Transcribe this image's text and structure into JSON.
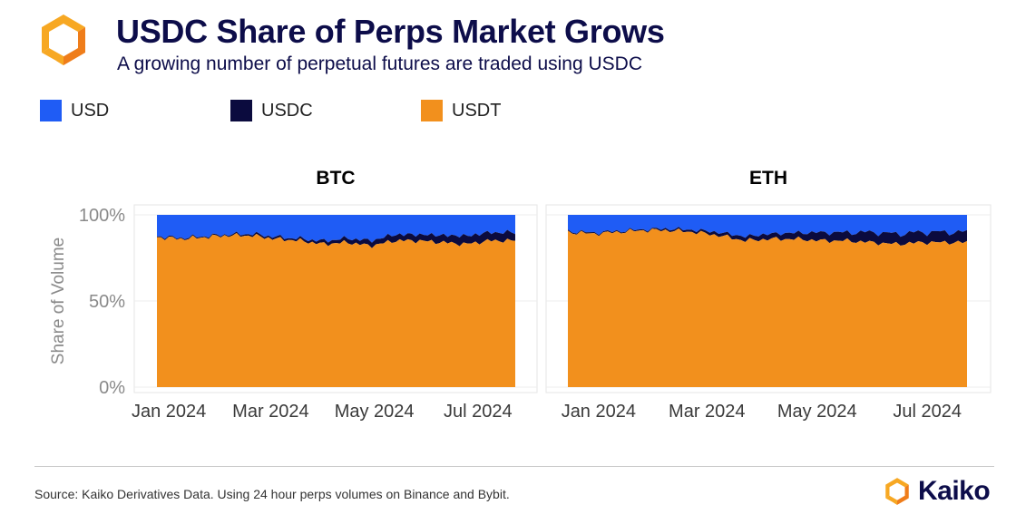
{
  "header": {
    "title": "USDC Share of Perps Market Grows",
    "subtitle": "A growing number of perpetual futures are traded using USDC"
  },
  "footer": {
    "source": "Source: Kaiko Derivatives Data. Using 24 hour perps volumes on Binance and Bybit.",
    "brand": "Kaiko"
  },
  "colors": {
    "usd": "#1f5cf5",
    "usdc": "#0b0b3e",
    "usdt": "#f2901d",
    "logo_orange": "#f7a823",
    "logo_dark": "#ef7d1a"
  },
  "chart_data": [
    {
      "type": "area",
      "stacked": true,
      "title": "BTC",
      "ylabel": "Share of Volume",
      "ylim": [
        0,
        100
      ],
      "yticks": [
        0,
        50,
        100
      ],
      "ytick_labels": [
        "0%",
        "50%",
        "100%"
      ],
      "x_range": [
        "2023-12-25",
        "2024-07-23"
      ],
      "xtick_labels": [
        "Jan 2024",
        "Mar 2024",
        "May 2024",
        "Jul 2024"
      ],
      "xticks": [
        "2024-01-01",
        "2024-03-01",
        "2024-05-01",
        "2024-07-01"
      ],
      "legend": "top-left",
      "x": [
        "2023-12-25",
        "2024-01-08",
        "2024-01-22",
        "2024-02-05",
        "2024-02-19",
        "2024-03-04",
        "2024-03-18",
        "2024-04-01",
        "2024-04-15",
        "2024-04-29",
        "2024-05-13",
        "2024-05-27",
        "2024-06-10",
        "2024-06-24",
        "2024-07-08",
        "2024-07-23"
      ],
      "series": [
        {
          "name": "USDT",
          "values": [
            87,
            86,
            87,
            88,
            88,
            86,
            85,
            83,
            84,
            82,
            85,
            85,
            84,
            83,
            85,
            85
          ]
        },
        {
          "name": "USDC",
          "values": [
            0.5,
            0.5,
            0.5,
            0.5,
            0.8,
            1,
            1,
            1.5,
            2,
            2.5,
            3,
            3,
            3.5,
            4,
            4,
            4
          ]
        },
        {
          "name": "USD",
          "values": [
            12.5,
            13.5,
            12.5,
            11.5,
            11.2,
            13,
            14,
            15.5,
            14,
            15.5,
            12,
            12,
            12.5,
            13,
            11,
            11
          ]
        }
      ]
    },
    {
      "type": "area",
      "stacked": true,
      "title": "ETH",
      "ylabel": "Share of Volume",
      "ylim": [
        0,
        100
      ],
      "yticks": [
        0,
        50,
        100
      ],
      "ytick_labels": [
        "0%",
        "50%",
        "100%"
      ],
      "x_range": [
        "2023-12-15",
        "2024-07-23"
      ],
      "xtick_labels": [
        "Jan 2024",
        "Mar 2024",
        "May 2024",
        "Jul 2024"
      ],
      "xticks": [
        "2024-01-01",
        "2024-03-01",
        "2024-05-01",
        "2024-07-01"
      ],
      "x": [
        "2023-12-15",
        "2023-12-29",
        "2024-01-12",
        "2024-01-26",
        "2024-02-09",
        "2024-02-23",
        "2024-03-08",
        "2024-03-22",
        "2024-04-05",
        "2024-04-19",
        "2024-05-03",
        "2024-05-17",
        "2024-05-31",
        "2024-06-14",
        "2024-06-28",
        "2024-07-23"
      ],
      "series": [
        {
          "name": "USDT",
          "values": [
            90,
            89,
            90,
            91,
            91,
            90,
            88,
            85,
            86,
            86,
            85,
            85,
            84,
            83,
            84,
            84
          ]
        },
        {
          "name": "USDC",
          "values": [
            0.5,
            0.5,
            0.5,
            0.5,
            0.8,
            1,
            1.5,
            2,
            2.5,
            3,
            4,
            4,
            5,
            5,
            5,
            5
          ]
        },
        {
          "name": "USD",
          "values": [
            9.5,
            10.5,
            9.5,
            8.5,
            8.2,
            9,
            10.5,
            13,
            11.5,
            11,
            11,
            11,
            11,
            12,
            11,
            11
          ]
        }
      ]
    }
  ]
}
